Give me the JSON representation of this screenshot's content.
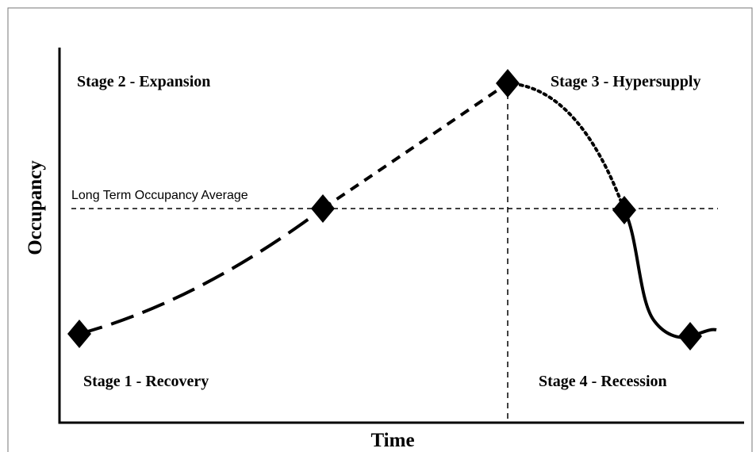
{
  "axes": {
    "x_label": "Time",
    "y_label": "Occupancy"
  },
  "reference_line": {
    "label": "Long Term Occupancy Average"
  },
  "stages": [
    {
      "label": "Stage 1 - Recovery"
    },
    {
      "label": "Stage 2 - Expansion"
    },
    {
      "label": "Stage 3 - Hypersupply"
    },
    {
      "label": "Stage 4 - Recession"
    }
  ]
}
